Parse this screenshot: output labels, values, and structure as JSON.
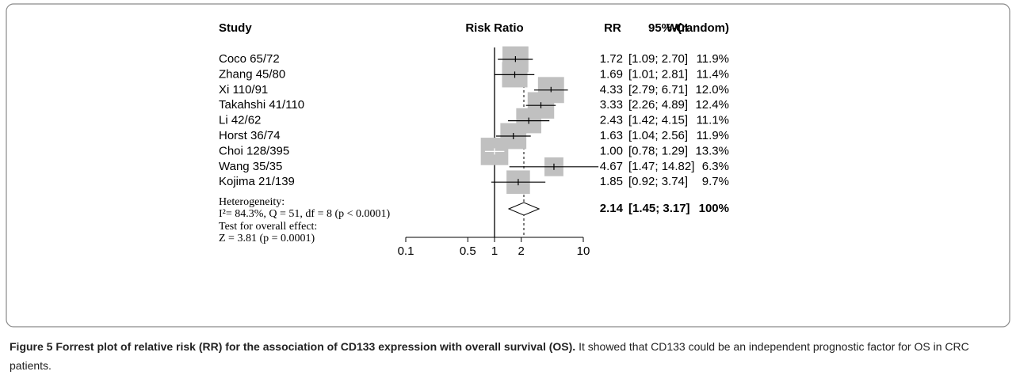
{
  "chart_data": {
    "type": "forest",
    "columns": [
      "Study",
      "Risk Ratio",
      "RR",
      "95%-CI",
      "W(random)"
    ],
    "categories": [
      "Coco 65/72",
      "Zhang 45/80",
      "Xi 110/91",
      "Takahshi 41/110",
      "Li 42/62",
      "Horst 36/74",
      "Choi 128/395",
      "Wang 35/35",
      "Kojima 21/139"
    ],
    "values": [
      1.72,
      1.69,
      4.33,
      3.33,
      2.43,
      1.63,
      1.0,
      4.67,
      1.85
    ],
    "value_labels": [
      "1.72",
      "1.69",
      "4.33",
      "3.33",
      "2.43",
      "1.63",
      "1.00",
      "4.67",
      "1.85"
    ],
    "ci_low": [
      1.09,
      1.01,
      2.79,
      2.26,
      1.42,
      1.04,
      0.78,
      1.47,
      0.92
    ],
    "ci_high": [
      2.7,
      2.81,
      6.71,
      4.89,
      4.15,
      2.56,
      1.29,
      14.82,
      3.74
    ],
    "ci_labels": [
      "[1.09; 2.70]",
      "[1.01; 2.81]",
      "[2.79; 6.71]",
      "[2.26; 4.89]",
      "[1.42; 4.15]",
      "[1.04; 2.56]",
      "[0.78; 1.29]",
      "[1.47; 14.82]",
      "[0.92; 3.74]"
    ],
    "weights": [
      11.9,
      11.4,
      12.0,
      12.4,
      11.1,
      11.9,
      13.3,
      6.3,
      9.7
    ],
    "weight_labels": [
      "11.9%",
      "11.4%",
      "12.0%",
      "12.4%",
      "11.1%",
      "11.9%",
      "13.3%",
      "6.3%",
      "9.7%"
    ],
    "summary": {
      "value": 2.14,
      "value_label": "2.14",
      "ci_low": 1.45,
      "ci_high": 3.17,
      "ci_label": "[1.45; 3.17]",
      "weight": 100,
      "weight_label": "100%"
    },
    "heterogeneity": [
      "Heterogeneity:",
      "I²= 84.3%, Q = 51, df = 8 (p < 0.0001)"
    ],
    "overall_effect": [
      "Test for overall effect:",
      "Z = 3.81 (p = 0.0001)"
    ],
    "xlim": [
      0.1,
      10
    ],
    "xticks": [
      0.1,
      0.5,
      1,
      2,
      10
    ],
    "log_x": true,
    "box_color": "#c0c0c0"
  },
  "caption": {
    "title": "Figure 5 Forrest plot of relative risk (RR) for the association of CD133 expression with overall survival (OS).",
    "text": "It showed that CD133 could be an independent prognostic factor for OS in CRC patients."
  }
}
